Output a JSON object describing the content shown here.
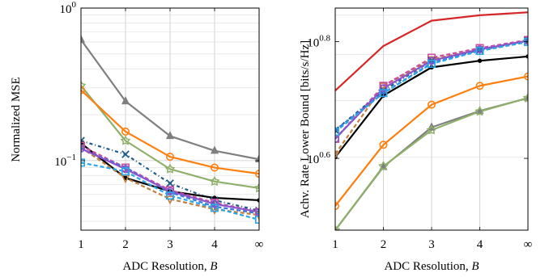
{
  "chart_data": [
    {
      "type": "line",
      "x_ticks": [
        "1",
        "2",
        "3",
        "4",
        "∞"
      ],
      "xlabel": "ADC Resolution, ",
      "xlabel_var": "B",
      "ylabel": "Normalized MSE",
      "yscale": "log",
      "ylim": [
        0.035,
        1.0
      ],
      "y_tick_labels": [
        {
          "value": 1.0,
          "base": "10",
          "exp": "0"
        },
        {
          "value": 0.1,
          "base": "10",
          "exp": "−1"
        }
      ],
      "grid": true,
      "series": [
        {
          "color": "#7f7f7f",
          "dash": "",
          "marker": "triangle",
          "values": [
            0.62,
            0.245,
            0.145,
            0.116,
            0.102
          ]
        },
        {
          "color": "#8fb06a",
          "dash": "",
          "marker": "star",
          "values": [
            0.31,
            0.135,
            0.088,
            0.073,
            0.066
          ]
        },
        {
          "color": "#ff7f0e",
          "dash": "",
          "marker": "circle",
          "values": [
            0.29,
            0.155,
            0.106,
            0.09,
            0.082
          ]
        },
        {
          "color": "#1f5a8a",
          "dash": "4,3,1,3",
          "marker": "x",
          "values": [
            0.135,
            0.11,
            0.071,
            0.055,
            0.047
          ]
        },
        {
          "color": "#000000",
          "dash": "",
          "marker": "dot",
          "values": [
            0.13,
            0.077,
            0.063,
            0.057,
            0.055
          ]
        },
        {
          "color": "#c08040",
          "dash": "5,3",
          "marker": "triangle-down",
          "values": [
            0.122,
            0.077,
            0.056,
            0.048,
            0.044
          ]
        },
        {
          "color": "#cc4d9e",
          "dash": "5,3",
          "marker": "square",
          "values": [
            0.125,
            0.09,
            0.064,
            0.053,
            0.046
          ]
        },
        {
          "color": "#3a78d8",
          "dash": "5,3",
          "marker": "plus",
          "values": [
            0.12,
            0.09,
            0.062,
            0.05,
            0.045
          ]
        },
        {
          "color": "#8a55cc",
          "dash": "",
          "marker": "circle",
          "values": [
            0.12,
            0.088,
            0.063,
            0.052,
            0.046
          ]
        },
        {
          "color": "#2aa5e8",
          "dash": "5,3",
          "marker": "square",
          "values": [
            0.097,
            0.085,
            0.059,
            0.049,
            0.041
          ]
        }
      ]
    },
    {
      "type": "line",
      "x_ticks": [
        "1",
        "2",
        "3",
        "4",
        "∞"
      ],
      "xlabel": "ADC Resolution, ",
      "xlabel_var": "B",
      "ylabel": "Achv. Rate Lower Bound [bits/s/Hz]",
      "yscale": "log",
      "ylim": [
        3.0,
        7.2
      ],
      "y_tick_labels": [
        {
          "value": 6.3096,
          "base": "10",
          "exp": "0.8"
        },
        {
          "value": 3.9811,
          "base": "10",
          "exp": "0.6"
        }
      ],
      "grid": true,
      "series": [
        {
          "color": "#d62728",
          "dash": "",
          "marker": "none",
          "values": [
            5.2,
            6.2,
            6.85,
            7.0,
            7.08
          ]
        },
        {
          "color": "#ff7f0e",
          "dash": "",
          "marker": "circle",
          "values": [
            3.3,
            4.2,
            4.92,
            5.3,
            5.5
          ]
        },
        {
          "color": "#7f7f7f",
          "dash": "",
          "marker": "triangle",
          "values": [
            3.0,
            3.85,
            4.5,
            4.8,
            5.05
          ]
        },
        {
          "color": "#8fb06a",
          "dash": "",
          "marker": "star",
          "values": [
            3.0,
            3.86,
            4.45,
            4.79,
            5.05
          ]
        },
        {
          "color": "#000000",
          "dash": "",
          "marker": "dot",
          "values": [
            4.0,
            5.1,
            5.7,
            5.85,
            5.95
          ]
        },
        {
          "color": "#c08040",
          "dash": "5,3",
          "marker": "triangle-down",
          "values": [
            4.05,
            5.3,
            5.88,
            6.12,
            6.33
          ]
        },
        {
          "color": "#cc4d9e",
          "dash": "5,3",
          "marker": "square",
          "values": [
            4.3,
            5.3,
            5.92,
            6.15,
            6.35
          ]
        },
        {
          "color": "#1f5a8a",
          "dash": "4,3,1,3",
          "marker": "x",
          "values": [
            4.45,
            5.2,
            5.85,
            6.1,
            6.33
          ]
        },
        {
          "color": "#3a78d8",
          "dash": "5,3",
          "marker": "plus",
          "values": [
            4.45,
            5.15,
            5.8,
            6.1,
            6.33
          ]
        },
        {
          "color": "#8a55cc",
          "dash": "",
          "marker": "circle",
          "values": [
            4.3,
            5.25,
            5.85,
            6.12,
            6.33
          ]
        },
        {
          "color": "#2aa5e8",
          "dash": "5,3",
          "marker": "square",
          "values": [
            4.42,
            5.15,
            5.78,
            6.08,
            6.3
          ]
        }
      ]
    }
  ]
}
